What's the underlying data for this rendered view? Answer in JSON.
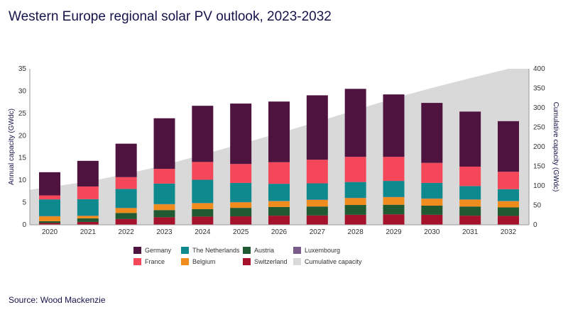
{
  "title": "Western Europe regional solar PV outlook, 2023-2032",
  "source": "Source: Wood Mackenzie",
  "chart_data": {
    "type": "bar",
    "stacked": true,
    "categories": [
      "2020",
      "2021",
      "2022",
      "2023",
      "2024",
      "2025",
      "2026",
      "2027",
      "2028",
      "2029",
      "2030",
      "2031",
      "2032"
    ],
    "ylabel": "Annual capacity (GWdc)",
    "ylim": [
      0,
      35
    ],
    "yticks": [
      0,
      5,
      10,
      15,
      20,
      25,
      30,
      35
    ],
    "y2label": "Cumulative capacity (GWdc)",
    "y2lim": [
      0,
      400
    ],
    "y2ticks": [
      0,
      50,
      100,
      150,
      200,
      250,
      300,
      350,
      400
    ],
    "grid": false,
    "legend_position": "bottom",
    "series": [
      {
        "name": "Switzerland",
        "color": "#a6112b",
        "values": [
          0.4,
          0.65,
          1.3,
          1.7,
          1.85,
          1.9,
          2.05,
          2.1,
          2.25,
          2.35,
          2.25,
          2.05,
          2.0
        ]
      },
      {
        "name": "Austria",
        "color": "#1f5a32",
        "values": [
          0.4,
          0.8,
          1.35,
          1.6,
          1.65,
          1.9,
          1.95,
          2.0,
          2.2,
          2.15,
          2.05,
          2.05,
          1.9
        ]
      },
      {
        "name": "Belgium",
        "color": "#f08c1e",
        "values": [
          1.1,
          0.55,
          1.1,
          1.3,
          1.35,
          1.25,
          1.3,
          1.5,
          1.55,
          1.7,
          1.55,
          1.55,
          1.4
        ]
      },
      {
        "name": "Luxembourg",
        "color": "#7a5c8a",
        "values": [
          0.05,
          0.05,
          0.05,
          0.05,
          0.05,
          0.05,
          0.05,
          0.05,
          0.05,
          0.05,
          0.05,
          0.05,
          0.05
        ]
      },
      {
        "name": "The Netherlands",
        "color": "#0e8a8f",
        "values": [
          3.75,
          3.7,
          4.25,
          4.6,
          5.2,
          4.3,
          3.85,
          3.65,
          3.55,
          3.6,
          3.5,
          3.0,
          2.65
        ]
      },
      {
        "name": "France",
        "color": "#f5475a",
        "values": [
          0.9,
          2.85,
          2.65,
          3.3,
          4.0,
          4.25,
          4.85,
          5.3,
          5.65,
          5.4,
          4.5,
          4.35,
          3.9
        ]
      },
      {
        "name": "Germany",
        "color": "#4f1340",
        "values": [
          5.2,
          5.75,
          7.5,
          11.35,
          12.6,
          13.55,
          13.6,
          14.45,
          15.25,
          14.0,
          13.45,
          12.35,
          11.35
        ]
      }
    ],
    "cumulative": {
      "name": "Cumulative capacity",
      "color": "#d9d9d9",
      "axis": "right",
      "values": [
        97,
        111,
        130,
        153,
        180,
        207,
        235,
        264,
        294,
        324,
        351,
        376,
        400
      ]
    },
    "legend_order": [
      "Germany",
      "The Netherlands",
      "Austria",
      "Luxembourg",
      "France",
      "Belgium",
      "Switzerland",
      "Cumulative capacity"
    ]
  }
}
